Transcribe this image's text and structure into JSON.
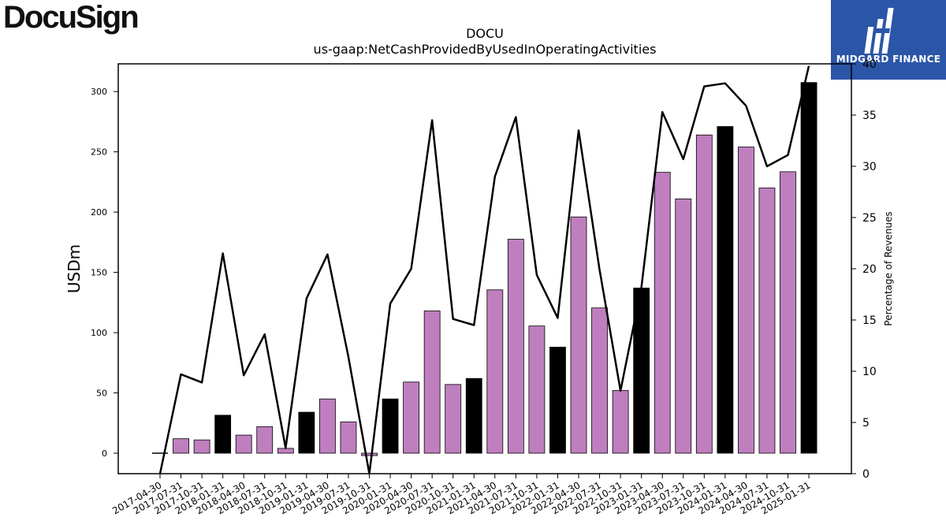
{
  "branding": {
    "company_logo_text": "DocuSign",
    "publisher_badge_text": "MIDGARD FINANCE"
  },
  "colors": {
    "bar_default": "#bf7fbf",
    "bar_highlight": "#000000",
    "line": "#000000",
    "badge_bg": "#2b56a8"
  },
  "chart_data": {
    "type": "bar",
    "title": "DOCU",
    "subtitle": "us-gaap:NetCashProvidedByUsedInOperatingActivities",
    "ylabel": "USDm",
    "y2label": "Percentage of Revenues",
    "ylim": [
      -17,
      323
    ],
    "y2lim": [
      0,
      40
    ],
    "yticks": [
      0,
      50,
      100,
      150,
      200,
      250,
      300
    ],
    "y2ticks": [
      0,
      5,
      10,
      15,
      20,
      25,
      30,
      35,
      40
    ],
    "grid": false,
    "categories": [
      "2017-04-30",
      "2017-07-31",
      "2017-10-31",
      "2018-01-31",
      "2018-04-30",
      "2018-07-31",
      "2018-10-31",
      "2019-01-31",
      "2019-04-30",
      "2019-07-31",
      "2019-10-31",
      "2020-01-31",
      "2020-04-30",
      "2020-07-31",
      "2020-10-31",
      "2021-01-31",
      "2021-04-30",
      "2021-07-31",
      "2021-10-31",
      "2022-01-31",
      "2022-04-30",
      "2022-07-31",
      "2022-10-31",
      "2023-01-31",
      "2023-04-30",
      "2023-07-31",
      "2023-10-31",
      "2024-01-31",
      "2024-04-30",
      "2024-07-31",
      "2024-10-31",
      "2025-01-31"
    ],
    "series": [
      {
        "axis": "left",
        "kind": "bar",
        "values": [
          0.0,
          12.0,
          11.0,
          31.5,
          15.0,
          22.0,
          4.0,
          34.0,
          45.0,
          26.0,
          -2.0,
          45.0,
          59.0,
          118.0,
          57.0,
          62.0,
          135.5,
          177.5,
          105.5,
          88.0,
          196.0,
          120.5,
          52.0,
          137.0,
          233.0,
          211.0,
          264.0,
          271.0,
          254.0,
          220.0,
          233.5,
          307.5
        ],
        "highlight": [
          false,
          false,
          false,
          true,
          false,
          false,
          false,
          true,
          false,
          false,
          false,
          true,
          false,
          false,
          false,
          true,
          false,
          false,
          false,
          true,
          false,
          false,
          false,
          true,
          false,
          false,
          false,
          true,
          false,
          false,
          false,
          true
        ]
      },
      {
        "axis": "right",
        "kind": "line",
        "values": [
          0.0,
          9.7,
          8.9,
          21.5,
          9.6,
          13.6,
          2.5,
          17.1,
          21.4,
          11.4,
          0.0,
          16.6,
          20.0,
          34.5,
          15.1,
          14.5,
          29.0,
          34.8,
          19.4,
          15.2,
          33.5,
          19.9,
          8.1,
          18.2,
          35.3,
          30.7,
          37.8,
          38.1,
          35.9,
          30.0,
          31.1,
          39.8
        ]
      }
    ]
  }
}
